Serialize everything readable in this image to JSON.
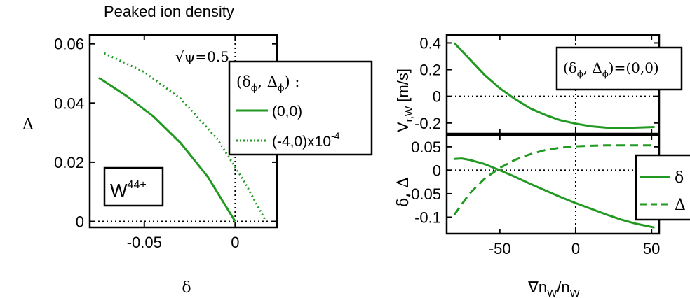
{
  "chart_data": [
    {
      "id": "left",
      "type": "line",
      "title": "Peaked ion density",
      "xlabel": "δ",
      "ylabel": "Δ",
      "xlim": [
        -0.08,
        0.023
      ],
      "ylim": [
        -0.002,
        0.063
      ],
      "xticks": [
        -0.05,
        0
      ],
      "xtick_labels": [
        "-0.05",
        "0"
      ],
      "yticks": [
        0,
        0.02,
        0.04,
        0.06
      ],
      "ytick_labels": [
        "0",
        "0.02",
        "0.04",
        "0.06"
      ],
      "annotation": "√ψ=0.5",
      "species_label": {
        "base": "W",
        "sup": "44+"
      },
      "legend_title": "(δϕ, Δϕ) :",
      "legend_title_parts": [
        "(δ",
        "ϕ",
        ", Δ",
        "ϕ",
        ") :"
      ],
      "legend_entries": [
        {
          "label": "(0,0)",
          "style": "solid"
        },
        {
          "label_base": "(-4,0)x10",
          "label_sup": "-4",
          "style": "dotted"
        }
      ],
      "series": [
        {
          "name": "(0,0)",
          "style": "solid",
          "x": [
            -0.075,
            -0.06,
            -0.045,
            -0.03,
            -0.015,
            0
          ],
          "y": [
            0.0485,
            0.0425,
            0.0355,
            0.0265,
            0.015,
            0
          ]
        },
        {
          "name": "(-4,0)x10-4",
          "style": "dotted",
          "x": [
            -0.072,
            -0.05,
            -0.03,
            -0.01,
            0.005,
            0.017
          ],
          "y": [
            0.0568,
            0.0505,
            0.0415,
            0.028,
            0.0135,
            0
          ]
        }
      ],
      "reference_lines": {
        "x": 0,
        "y": 0
      }
    },
    {
      "id": "right-top",
      "type": "line",
      "xlim": [
        -85,
        55
      ],
      "ylim": [
        -0.28,
        0.46
      ],
      "ylabel_parts": [
        "V",
        "r,W",
        " [m/s]"
      ],
      "yticks": [
        -0.2,
        0,
        0.2,
        0.4
      ],
      "ytick_labels": [
        "-0.2",
        "0",
        "0.2",
        "0.4"
      ],
      "legend_text_parts": [
        "(δ",
        "ϕ",
        ", Δ",
        "ϕ",
        ")=(0,0)"
      ],
      "series": [
        {
          "name": "",
          "style": "solid",
          "x": [
            -80,
            -70,
            -60,
            -50,
            -40,
            -30,
            -20,
            -10,
            0,
            10,
            20,
            30,
            40,
            52
          ],
          "y": [
            0.4,
            0.28,
            0.16,
            0.06,
            -0.02,
            -0.09,
            -0.14,
            -0.18,
            -0.205,
            -0.225,
            -0.235,
            -0.24,
            -0.235,
            -0.23
          ]
        }
      ],
      "reference_lines": {
        "x": 0,
        "y": 0
      }
    },
    {
      "id": "right-bottom",
      "type": "line",
      "xlabel_parts": [
        "∇n",
        "W",
        "/n",
        "W"
      ],
      "ylabel": "δ, Δ",
      "xlim": [
        -85,
        55
      ],
      "ylim": [
        -0.135,
        0.075
      ],
      "xticks": [
        -50,
        0,
        50
      ],
      "xtick_labels": [
        "-50",
        "0",
        "50"
      ],
      "yticks": [
        -0.1,
        -0.05,
        0,
        0.05
      ],
      "ytick_labels": [
        "-0.1",
        "-0.05",
        "0",
        "0.05"
      ],
      "legend_entries": [
        {
          "label": "δ",
          "style": "solid"
        },
        {
          "label": "Δ",
          "style": "dashed"
        }
      ],
      "series": [
        {
          "name": "δ",
          "style": "solid",
          "x": [
            -80,
            -75,
            -70,
            -60,
            -50,
            -40,
            -30,
            -20,
            -10,
            0,
            10,
            20,
            30,
            40,
            52
          ],
          "y": [
            0.024,
            0.025,
            0.022,
            0.013,
            0.0,
            -0.014,
            -0.029,
            -0.043,
            -0.057,
            -0.07,
            -0.082,
            -0.094,
            -0.105,
            -0.114,
            -0.122
          ]
        },
        {
          "name": "Δ",
          "style": "dashed",
          "x": [
            -80,
            -70,
            -60,
            -50,
            -40,
            -30,
            -20,
            -10,
            0,
            10,
            20,
            30,
            40,
            52
          ],
          "y": [
            -0.095,
            -0.05,
            -0.018,
            0.005,
            0.022,
            0.034,
            0.043,
            0.048,
            0.051,
            0.052,
            0.053,
            0.053,
            0.053,
            0.053
          ]
        }
      ],
      "reference_lines": {
        "x": 0,
        "y": 0
      }
    }
  ],
  "colors": {
    "series": "#229922",
    "axes": "#000000"
  }
}
